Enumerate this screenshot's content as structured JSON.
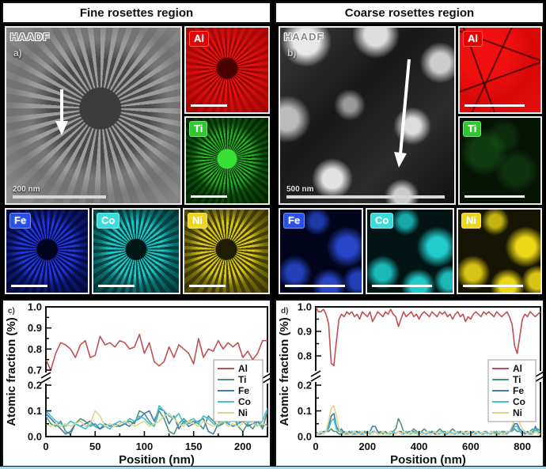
{
  "figure": {
    "bottom_edge_color": "#a9d6e8"
  },
  "panels": [
    {
      "header": "Fine rosettes region",
      "haadf": {
        "label": "HAADF",
        "sub_label": "a)",
        "scale_bar_text": "200 nm"
      },
      "maps": [
        {
          "element": "Al",
          "badge_color": "#e60000"
        },
        {
          "element": "Ti",
          "badge_color": "#2ec82e"
        },
        {
          "element": "Fe",
          "badge_color": "#2750e8"
        },
        {
          "element": "Co",
          "badge_color": "#38dcdc"
        },
        {
          "element": "Ni",
          "badge_color": "#ecd51c"
        }
      ]
    },
    {
      "header": "Coarse rosettes region",
      "haadf": {
        "label": "HAADF",
        "sub_label": "b)",
        "scale_bar_text": "500 nm"
      },
      "maps": [
        {
          "element": "Al",
          "badge_color": "#e60000"
        },
        {
          "element": "Ti",
          "badge_color": "#2ec82e"
        },
        {
          "element": "Fe",
          "badge_color": "#2750e8"
        },
        {
          "element": "Co",
          "badge_color": "#38dcdc"
        },
        {
          "element": "Ni",
          "badge_color": "#ecd51c"
        }
      ]
    }
  ],
  "chart_data": [
    {
      "type": "line",
      "panel_label": "c)",
      "xlabel": "Position (nm)",
      "ylabel": "Atomic fraction (%)",
      "x_ticks": [
        0,
        50,
        100,
        150,
        200
      ],
      "x_max": 225,
      "x_step": 5,
      "y_upper": [
        0.7,
        0.8,
        0.9,
        1.0
      ],
      "y_lower": [
        0.0,
        0.1,
        0.2
      ],
      "axis_break": true,
      "legend_position": "right-middle",
      "series": [
        {
          "name": "Al",
          "color": "#c05050",
          "values": [
            0.75,
            0.7,
            0.78,
            0.83,
            0.82,
            0.8,
            0.76,
            0.82,
            0.84,
            0.76,
            0.77,
            0.86,
            0.82,
            0.83,
            0.81,
            0.84,
            0.83,
            0.8,
            0.81,
            0.87,
            0.78,
            0.83,
            0.74,
            0.72,
            0.74,
            0.81,
            0.76,
            0.82,
            0.8,
            0.78,
            0.73,
            0.85,
            0.76,
            0.8,
            0.79,
            0.84,
            0.8,
            0.83,
            0.81,
            0.83,
            0.76,
            0.79,
            0.75,
            0.78,
            0.84,
            0.84
          ]
        },
        {
          "name": "Ti",
          "color": "#4f9478",
          "values": [
            0.08,
            0.05,
            0.04,
            0.06,
            0.02,
            0.01,
            0.05,
            0.07,
            0.06,
            0.04,
            0.05,
            0.03,
            0.04,
            0.05,
            0.04,
            0.04,
            0.05,
            0.06,
            0.05,
            0.1,
            0.09,
            0.06,
            0.04,
            0.1,
            0.07,
            0.02,
            0.01,
            0.05,
            0.07,
            0.05,
            0.06,
            0.05,
            0.03,
            0.08,
            0.06,
            0.04,
            0.05,
            0.11,
            0.08,
            0.04,
            0.02,
            0.05,
            0.03,
            0.06,
            0.03,
            0.1
          ]
        },
        {
          "name": "Fe",
          "color": "#3f7cb0",
          "values": [
            0.09,
            0.07,
            0.05,
            0.03,
            0.01,
            0.02,
            0.05,
            0.04,
            0.05,
            0.06,
            0.04,
            0.03,
            0.05,
            0.04,
            0.05,
            0.04,
            0.05,
            0.04,
            0.06,
            0.07,
            0.09,
            0.1,
            0.06,
            0.11,
            0.1,
            0.05,
            0.08,
            0.03,
            0.06,
            0.04,
            0.05,
            0.06,
            0.07,
            0.02,
            0.01,
            0.05,
            0.08,
            0.05,
            0.04,
            0.05,
            0.06,
            0.04,
            0.05,
            0.06,
            0.04,
            0.05
          ]
        },
        {
          "name": "Co",
          "color": "#3fc0d4",
          "values": [
            0.1,
            0.08,
            0.06,
            0.05,
            0.04,
            0.06,
            0.05,
            0.04,
            0.03,
            0.05,
            0.04,
            0.05,
            0.04,
            0.03,
            0.05,
            0.06,
            0.05,
            0.07,
            0.06,
            0.08,
            0.07,
            0.05,
            0.04,
            0.12,
            0.1,
            0.08,
            0.07,
            0.09,
            0.05,
            0.06,
            0.07,
            0.05,
            0.08,
            0.07,
            0.05,
            0.04,
            0.06,
            0.05,
            0.07,
            0.05,
            0.08,
            0.05,
            0.07,
            0.04,
            0.06,
            0.11
          ]
        },
        {
          "name": "Ni",
          "color": "#ddd588",
          "values": [
            0.05,
            0.04,
            0.05,
            0.04,
            0.05,
            0.04,
            0.05,
            0.06,
            0.04,
            0.05,
            0.1,
            0.08,
            0.04,
            0.05,
            0.04,
            0.05,
            0.06,
            0.05,
            0.04,
            0.05,
            0.06,
            0.04,
            0.05,
            0.06,
            0.08,
            0.09,
            0.07,
            0.05,
            0.04,
            0.06,
            0.05,
            0.04,
            0.06,
            0.05,
            0.04,
            0.05,
            0.06,
            0.04,
            0.05,
            0.04,
            0.05,
            0.06,
            0.05,
            0.04,
            0.05,
            0.04
          ]
        }
      ]
    },
    {
      "type": "line",
      "panel_label": "d)",
      "xlabel": "Position (nm)",
      "ylabel": "Atomic fraction (%)",
      "x_ticks": [
        0,
        200,
        400,
        600,
        800
      ],
      "x_max": 870,
      "x_step": 10,
      "y_upper": [
        0.8,
        0.9,
        1.0
      ],
      "y_lower": [
        0.0,
        0.1,
        0.2
      ],
      "axis_break": true,
      "legend_position": "right-middle",
      "series": [
        {
          "name": "Al",
          "color": "#c05050",
          "values": [
            1.0,
            0.98,
            0.98,
            0.99,
            0.97,
            0.93,
            0.77,
            0.76,
            0.86,
            0.95,
            0.97,
            0.96,
            0.98,
            0.97,
            0.98,
            0.96,
            0.97,
            0.95,
            0.98,
            0.97,
            0.96,
            0.98,
            0.94,
            0.96,
            0.98,
            0.97,
            0.96,
            0.98,
            0.97,
            0.99,
            0.97,
            0.96,
            0.92,
            0.95,
            0.98,
            0.96,
            0.97,
            0.98,
            0.96,
            0.97,
            0.95,
            0.97,
            0.98,
            0.97,
            0.96,
            0.98,
            0.97,
            0.96,
            0.98,
            0.97,
            0.98,
            0.96,
            0.97,
            0.95,
            0.97,
            0.98,
            0.96,
            0.97,
            0.94,
            0.96,
            0.95,
            0.97,
            0.98,
            0.97,
            0.96,
            0.98,
            0.97,
            0.98,
            0.97,
            0.96,
            0.98,
            0.97,
            0.96,
            0.97,
            0.98,
            0.96,
            0.93,
            0.84,
            0.81,
            0.88,
            0.95,
            0.97,
            0.96,
            0.98,
            0.97,
            0.96,
            0.97,
            0.98
          ]
        },
        {
          "name": "Ti",
          "color": "#4f9478",
          "values": [
            0.02,
            0.01,
            0.02,
            0.01,
            0.02,
            0.02,
            0.03,
            0.02,
            0.02,
            0.01,
            0.01,
            0.02,
            0.01,
            0.02,
            0.01,
            0.02,
            0.02,
            0.01,
            0.02,
            0.01,
            0.02,
            0.01,
            0.02,
            0.02,
            0.01,
            0.02,
            0.01,
            0.02,
            0.01,
            0.02,
            0.02,
            0.03,
            0.07,
            0.05,
            0.02,
            0.01,
            0.02,
            0.02,
            0.03,
            0.02,
            0.01,
            0.02,
            0.03,
            0.02,
            0.01,
            0.02,
            0.01,
            0.02,
            0.03,
            0.02,
            0.02,
            0.01,
            0.02,
            0.03,
            0.02,
            0.01,
            0.02,
            0.01,
            0.02,
            0.02,
            0.01,
            0.02,
            0.01,
            0.02,
            0.01,
            0.02,
            0.02,
            0.01,
            0.02,
            0.01,
            0.02,
            0.01,
            0.02,
            0.02,
            0.01,
            0.02,
            0.02,
            0.03,
            0.02,
            0.02,
            0.01,
            0.02,
            0.01,
            0.02,
            0.03,
            0.02,
            0.03,
            0.02
          ]
        },
        {
          "name": "Fe",
          "color": "#3f7cb0",
          "values": [
            0.01,
            0.01,
            0.01,
            0.02,
            0.02,
            0.04,
            0.08,
            0.09,
            0.04,
            0.02,
            0.03,
            0.01,
            0.01,
            0.02,
            0.01,
            0.01,
            0.02,
            0.01,
            0.01,
            0.02,
            0.01,
            0.02,
            0.04,
            0.04,
            0.02,
            0.01,
            0.02,
            0.01,
            0.01,
            0.02,
            0.01,
            0.01,
            0.02,
            0.02,
            0.01,
            0.02,
            0.01,
            0.02,
            0.02,
            0.01,
            0.02,
            0.01,
            0.01,
            0.02,
            0.01,
            0.02,
            0.01,
            0.01,
            0.02,
            0.01,
            0.01,
            0.02,
            0.01,
            0.01,
            0.02,
            0.01,
            0.02,
            0.01,
            0.01,
            0.02,
            0.01,
            0.02,
            0.01,
            0.02,
            0.01,
            0.01,
            0.02,
            0.01,
            0.02,
            0.01,
            0.01,
            0.02,
            0.01,
            0.01,
            0.02,
            0.02,
            0.03,
            0.05,
            0.05,
            0.03,
            0.02,
            0.01,
            0.02,
            0.01,
            0.01,
            0.04,
            0.02,
            0.01
          ]
        },
        {
          "name": "Co",
          "color": "#3fc0d4",
          "values": [
            0.01,
            0.01,
            0.02,
            0.01,
            0.02,
            0.03,
            0.06,
            0.07,
            0.03,
            0.02,
            0.02,
            0.01,
            0.01,
            0.01,
            0.02,
            0.01,
            0.01,
            0.02,
            0.01,
            0.01,
            0.02,
            0.01,
            0.02,
            0.02,
            0.01,
            0.01,
            0.02,
            0.01,
            0.01,
            0.01,
            0.02,
            0.01,
            0.02,
            0.01,
            0.01,
            0.02,
            0.01,
            0.01,
            0.02,
            0.01,
            0.01,
            0.02,
            0.01,
            0.01,
            0.02,
            0.01,
            0.02,
            0.01,
            0.01,
            0.02,
            0.01,
            0.01,
            0.02,
            0.01,
            0.01,
            0.02,
            0.01,
            0.02,
            0.01,
            0.01,
            0.02,
            0.01,
            0.01,
            0.02,
            0.01,
            0.01,
            0.02,
            0.01,
            0.01,
            0.02,
            0.01,
            0.01,
            0.02,
            0.01,
            0.01,
            0.02,
            0.02,
            0.04,
            0.04,
            0.02,
            0.01,
            0.02,
            0.01,
            0.01,
            0.02,
            0.03,
            0.02,
            0.01
          ]
        },
        {
          "name": "Ni",
          "color": "#ddd588",
          "values": [
            0.01,
            0.01,
            0.02,
            0.01,
            0.02,
            0.06,
            0.11,
            0.12,
            0.08,
            0.03,
            0.01,
            0.01,
            0.02,
            0.01,
            0.01,
            0.02,
            0.01,
            0.01,
            0.02,
            0.01,
            0.01,
            0.02,
            0.01,
            0.02,
            0.01,
            0.01,
            0.02,
            0.01,
            0.01,
            0.02,
            0.01,
            0.01,
            0.02,
            0.01,
            0.02,
            0.01,
            0.01,
            0.02,
            0.01,
            0.01,
            0.02,
            0.01,
            0.01,
            0.02,
            0.01,
            0.01,
            0.02,
            0.01,
            0.02,
            0.01,
            0.01,
            0.02,
            0.01,
            0.01,
            0.02,
            0.01,
            0.01,
            0.02,
            0.01,
            0.02,
            0.01,
            0.01,
            0.02,
            0.01,
            0.01,
            0.02,
            0.01,
            0.01,
            0.02,
            0.01,
            0.01,
            0.02,
            0.01,
            0.01,
            0.02,
            0.02,
            0.04,
            0.07,
            0.09,
            0.05,
            0.03,
            0.02,
            0.01,
            0.02,
            0.01,
            0.02,
            0.01,
            0.01
          ]
        }
      ]
    }
  ]
}
